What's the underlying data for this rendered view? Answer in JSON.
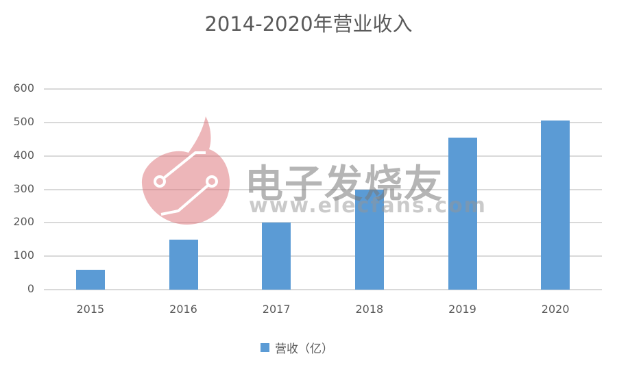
{
  "chart_data": {
    "type": "bar",
    "title": "2014-2020年营业收入",
    "categories": [
      "2015",
      "2016",
      "2017",
      "2018",
      "2019",
      "2020"
    ],
    "series": [
      {
        "name": "营收（亿）",
        "values": [
          60,
          150,
          200,
          300,
          455,
          505
        ],
        "color": "#5b9bd5"
      }
    ],
    "xlabel": "",
    "ylabel": "",
    "ylim": [
      0,
      600
    ],
    "yticks": [
      "600",
      "500",
      "400",
      "300",
      "200",
      "100",
      "0"
    ],
    "grid": true,
    "legend_position": "bottom"
  },
  "watermark": {
    "text": "电子发烧友",
    "url": "www.elecfans.com"
  }
}
